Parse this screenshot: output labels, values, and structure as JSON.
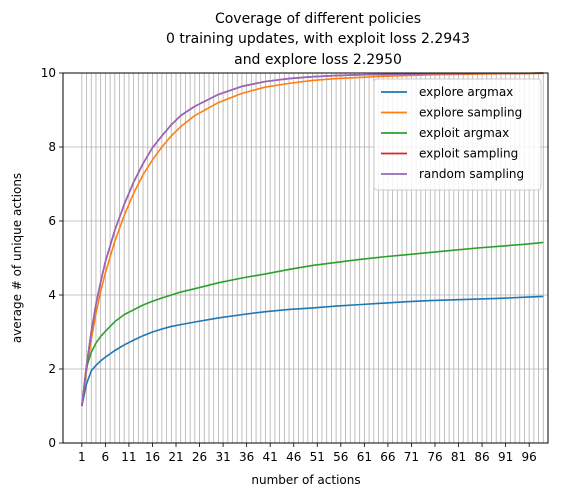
{
  "chart_data": {
    "type": "line",
    "title": [
      "Coverage of different policies",
      "0 training updates, with exploit loss 2.2943",
      "and explore loss 2.2950"
    ],
    "xlabel": "number of actions",
    "ylabel": "average # of unique actions",
    "xlim": [
      -3,
      100
    ],
    "ylim": [
      0,
      10
    ],
    "x_ticks": [
      1,
      6,
      11,
      16,
      21,
      26,
      31,
      36,
      41,
      46,
      51,
      56,
      61,
      66,
      71,
      76,
      81,
      86,
      91,
      96
    ],
    "y_ticks": [
      0,
      2,
      4,
      6,
      8,
      10
    ],
    "grid": "on",
    "legend_position": "top-right",
    "x": [
      1,
      2,
      3,
      4,
      5,
      6,
      8,
      10,
      12,
      14,
      16,
      18,
      20,
      22,
      25,
      30,
      35,
      40,
      45,
      50,
      55,
      60,
      65,
      70,
      75,
      80,
      85,
      90,
      95,
      99
    ],
    "series": [
      {
        "name": "explore argmax",
        "color": "#1f77b4",
        "values": [
          1.0,
          1.6,
          1.95,
          2.1,
          2.22,
          2.32,
          2.5,
          2.65,
          2.78,
          2.9,
          3.0,
          3.08,
          3.15,
          3.2,
          3.27,
          3.38,
          3.47,
          3.55,
          3.61,
          3.65,
          3.7,
          3.74,
          3.78,
          3.82,
          3.85,
          3.87,
          3.89,
          3.91,
          3.94,
          3.96
        ]
      },
      {
        "name": "explore sampling",
        "color": "#ff7f0e",
        "values": [
          1.0,
          1.95,
          2.8,
          3.5,
          4.1,
          4.6,
          5.45,
          6.15,
          6.75,
          7.25,
          7.65,
          8.0,
          8.3,
          8.55,
          8.85,
          9.2,
          9.45,
          9.62,
          9.72,
          9.8,
          9.85,
          9.88,
          9.91,
          9.93,
          9.95,
          9.96,
          9.97,
          9.98,
          9.98,
          9.99
        ]
      },
      {
        "name": "exploit argmax",
        "color": "#2ca02c",
        "values": [
          1.0,
          2.05,
          2.45,
          2.7,
          2.88,
          3.02,
          3.28,
          3.47,
          3.6,
          3.73,
          3.83,
          3.92,
          4.0,
          4.08,
          4.17,
          4.33,
          4.46,
          4.57,
          4.69,
          4.8,
          4.88,
          4.96,
          5.03,
          5.09,
          5.15,
          5.21,
          5.27,
          5.32,
          5.37,
          5.42
        ]
      },
      {
        "name": "exploit sampling",
        "color": "#d62728",
        "values": [
          1.0,
          2.1,
          3.0,
          3.75,
          4.35,
          4.9,
          5.75,
          6.45,
          7.05,
          7.55,
          7.98,
          8.3,
          8.6,
          8.85,
          9.1,
          9.42,
          9.64,
          9.77,
          9.85,
          9.9,
          9.93,
          9.95,
          9.96,
          9.97,
          9.98,
          9.98,
          9.99,
          9.99,
          9.99,
          10.0
        ]
      },
      {
        "name": "random sampling",
        "color": "#9467bd",
        "values": [
          1.0,
          2.1,
          3.0,
          3.75,
          4.35,
          4.9,
          5.75,
          6.45,
          7.05,
          7.55,
          7.98,
          8.3,
          8.6,
          8.85,
          9.1,
          9.42,
          9.64,
          9.77,
          9.85,
          9.9,
          9.93,
          9.95,
          9.96,
          9.97,
          9.98,
          9.98,
          9.99,
          9.99,
          9.99,
          10.0
        ]
      }
    ]
  }
}
